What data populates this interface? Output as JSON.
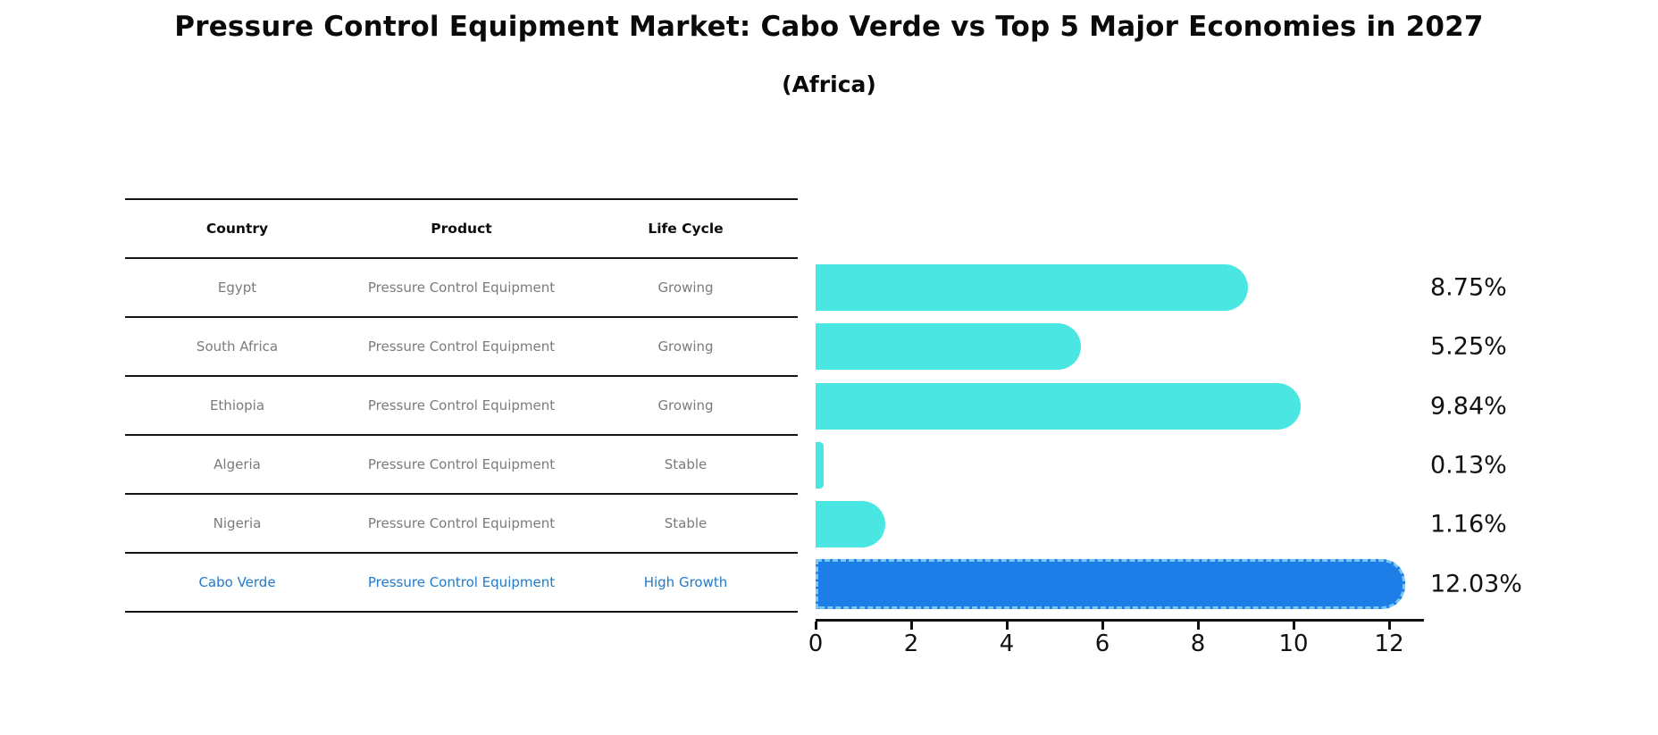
{
  "title": "Pressure Control Equipment Market: Cabo Verde vs Top 5 Major Economies in 2027",
  "subtitle": "(Africa)",
  "table": {
    "headers": [
      "Country",
      "Product",
      "Life Cycle"
    ],
    "rows": [
      {
        "country": "Egypt",
        "product": "Pressure Control Equipment",
        "life_cycle": "Growing",
        "highlight": false
      },
      {
        "country": "South Africa",
        "product": "Pressure Control Equipment",
        "life_cycle": "Growing",
        "highlight": false
      },
      {
        "country": "Ethiopia",
        "product": "Pressure Control Equipment",
        "life_cycle": "Growing",
        "highlight": false
      },
      {
        "country": "Algeria",
        "product": "Pressure Control Equipment",
        "life_cycle": "Stable",
        "highlight": false
      },
      {
        "country": "Nigeria",
        "product": "Pressure Control Equipment",
        "life_cycle": "Stable",
        "highlight": false
      },
      {
        "country": "Cabo Verde",
        "product": "Pressure Control Equipment",
        "life_cycle": "High Growth",
        "highlight": true
      }
    ]
  },
  "chart_data": {
    "type": "bar",
    "orientation": "horizontal",
    "categories": [
      "Egypt",
      "South Africa",
      "Ethiopia",
      "Algeria",
      "Nigeria",
      "Cabo Verde"
    ],
    "values": [
      8.75,
      5.25,
      9.84,
      0.13,
      1.16,
      12.03
    ],
    "labels": [
      "8.75%",
      "5.25%",
      "9.84%",
      "0.13%",
      "1.16%",
      "12.03%"
    ],
    "xticks": [
      "0",
      "2",
      "4",
      "6",
      "8",
      "10",
      "12"
    ],
    "xtick_values": [
      0,
      2,
      4,
      6,
      8,
      10,
      12
    ],
    "xlim": [
      0,
      12.69
    ],
    "grid": false,
    "legend": "none",
    "bar_color": "#4ae7e2",
    "highlight_color": "#1e7ee8",
    "highlight_border_color": "#79c7f2",
    "highlight_index": 5
  }
}
